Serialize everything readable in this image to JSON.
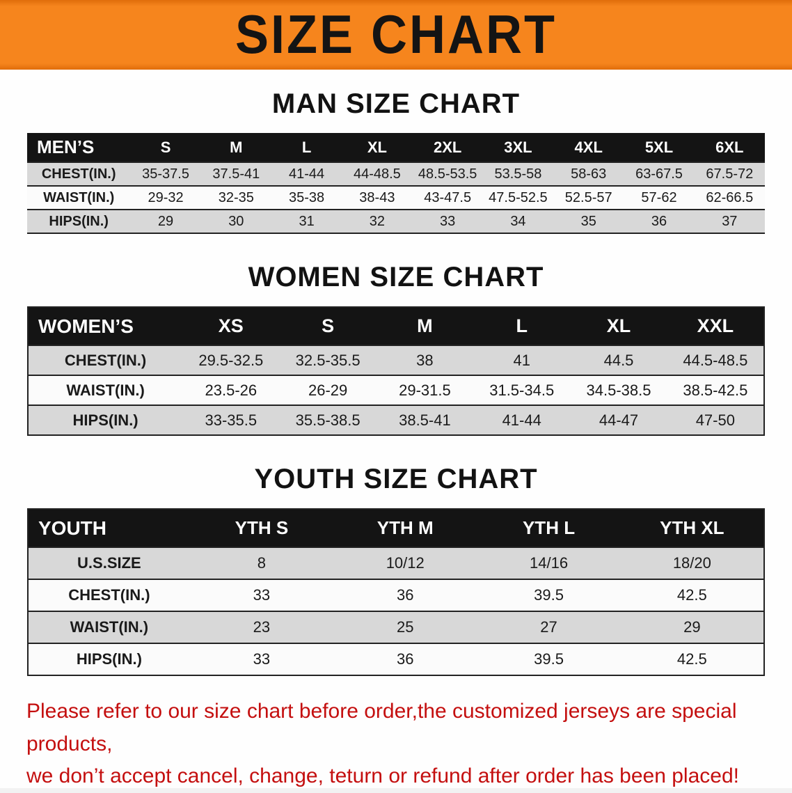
{
  "banner": {
    "title": "SIZE CHART",
    "bg_color": "#f6851d",
    "text_color": "#141414"
  },
  "chart_data": [
    {
      "type": "table",
      "title": "MAN SIZE CHART",
      "columns": [
        "MEN’S",
        "S",
        "M",
        "L",
        "XL",
        "2XL",
        "3XL",
        "4XL",
        "5XL",
        "6XL"
      ],
      "rows": [
        [
          "CHEST(IN.)",
          "35-37.5",
          "37.5-41",
          "41-44",
          "44-48.5",
          "48.5-53.5",
          "53.5-58",
          "58-63",
          "63-67.5",
          "67.5-72"
        ],
        [
          "WAIST(IN.)",
          "29-32",
          "32-35",
          "35-38",
          "38-43",
          "43-47.5",
          "47.5-52.5",
          "52.5-57",
          "57-62",
          "62-66.5"
        ],
        [
          "HIPS(IN.)",
          "29",
          "30",
          "31",
          "32",
          "33",
          "34",
          "35",
          "36",
          "37"
        ]
      ]
    },
    {
      "type": "table",
      "title": "WOMEN SIZE CHART",
      "columns": [
        "WOMEN’S",
        "XS",
        "S",
        "M",
        "L",
        "XL",
        "XXL"
      ],
      "rows": [
        [
          "CHEST(IN.)",
          "29.5-32.5",
          "32.5-35.5",
          "38",
          "41",
          "44.5",
          "44.5-48.5"
        ],
        [
          "WAIST(IN.)",
          "23.5-26",
          "26-29",
          "29-31.5",
          "31.5-34.5",
          "34.5-38.5",
          "38.5-42.5"
        ],
        [
          "HIPS(IN.)",
          "33-35.5",
          "35.5-38.5",
          "38.5-41",
          "41-44",
          "44-47",
          "47-50"
        ]
      ]
    },
    {
      "type": "table",
      "title": "YOUTH SIZE CHART",
      "columns": [
        "YOUTH",
        "YTH S",
        "YTH M",
        "YTH L",
        "YTH XL"
      ],
      "rows": [
        [
          "U.S.SIZE",
          "8",
          "10/12",
          "14/16",
          "18/20"
        ],
        [
          "CHEST(IN.)",
          "33",
          "36",
          "39.5",
          "42.5"
        ],
        [
          "WAIST(IN.)",
          "23",
          "25",
          "27",
          "29"
        ],
        [
          "HIPS(IN.)",
          "33",
          "36",
          "39.5",
          "42.5"
        ]
      ]
    }
  ],
  "footer": {
    "line1": "Please refer to our size chart before order,the customized jerseys are special products,",
    "line2": "we don’t accept cancel, change, teturn or refund after order has been placed!",
    "color": "#c40f0f"
  }
}
